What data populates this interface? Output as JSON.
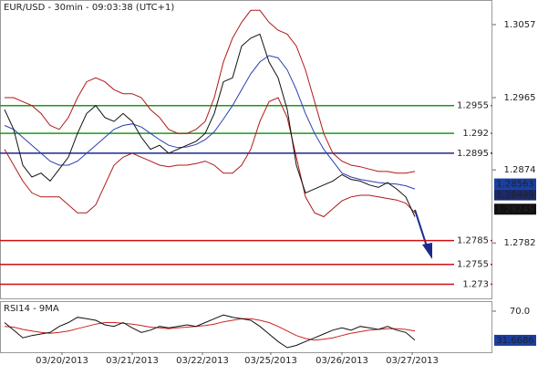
{
  "chart_data": [
    {
      "type": "line",
      "title": "EUR/USD - 30min - 09:03:38 (UTC+1)",
      "x": [
        0,
        1,
        2,
        3,
        4,
        5,
        6,
        7,
        8,
        9,
        10,
        11,
        12,
        13,
        14,
        15,
        16,
        17,
        18,
        19,
        20,
        21,
        22,
        23,
        24,
        25,
        26,
        27,
        28,
        29,
        30,
        31,
        32,
        33,
        34,
        35,
        36,
        37,
        38,
        39,
        40,
        41,
        42,
        43,
        44,
        45
      ],
      "xlim": [
        -0.5,
        53.5
      ],
      "xticks": [
        {
          "value": 6.3,
          "label": "03/20/2013"
        },
        {
          "value": 14,
          "label": "03/21/2013"
        },
        {
          "value": 21.7,
          "label": "03/22/2013"
        },
        {
          "value": 29.2,
          "label": "03/25/2013"
        },
        {
          "value": 37,
          "label": "03/26/2013"
        },
        {
          "value": 44.7,
          "label": "03/27/2013"
        }
      ],
      "ylim": [
        1.2711,
        1.3088
      ],
      "yticks": [
        1.3057,
        1.2965,
        1.2874,
        1.2782
      ],
      "series": [
        {
          "color": "#b01818",
          "values": [
            1.2965,
            1.2965,
            1.296,
            1.2955,
            1.2945,
            1.293,
            1.2925,
            1.294,
            1.2965,
            1.2985,
            1.299,
            1.2985,
            1.2975,
            1.297,
            1.297,
            1.2965,
            1.295,
            1.294,
            1.2925,
            1.292,
            1.292,
            1.2925,
            1.2935,
            1.2965,
            1.301,
            1.304,
            1.306,
            1.3075,
            1.3075,
            1.306,
            1.305,
            1.3045,
            1.303,
            1.3,
            1.296,
            1.292,
            1.2895,
            1.2885,
            1.288,
            1.2878,
            1.2875,
            1.2872,
            1.2872,
            1.287,
            1.287,
            1.2872
          ]
        },
        {
          "color": "#b01818",
          "values": [
            1.29,
            1.288,
            1.286,
            1.2845,
            1.284,
            1.284,
            1.284,
            1.283,
            1.282,
            1.282,
            1.283,
            1.2855,
            1.288,
            1.289,
            1.2895,
            1.289,
            1.2885,
            1.288,
            1.2878,
            1.288,
            1.288,
            1.2882,
            1.2885,
            1.288,
            1.287,
            1.287,
            1.288,
            1.29,
            1.2935,
            1.296,
            1.2965,
            1.294,
            1.289,
            1.284,
            1.282,
            1.2815,
            1.2825,
            1.2835,
            1.284,
            1.2842,
            1.2842,
            1.284,
            1.2838,
            1.2836,
            1.2832,
            1.282
          ]
        },
        {
          "color": "#2b3fb0",
          "values": [
            1.293,
            1.2925,
            1.2915,
            1.2905,
            1.2895,
            1.2885,
            1.288,
            1.288,
            1.2885,
            1.2895,
            1.2905,
            1.2915,
            1.2925,
            1.293,
            1.2932,
            1.2928,
            1.292,
            1.2912,
            1.2905,
            1.2902,
            1.2903,
            1.2906,
            1.2912,
            1.2922,
            1.2938,
            1.2955,
            1.2975,
            1.2995,
            1.301,
            1.3018,
            1.3015,
            1.3,
            1.2975,
            1.2945,
            1.292,
            1.29,
            1.2885,
            1.287,
            1.2865,
            1.2862,
            1.286,
            1.2858,
            1.2857,
            1.2856,
            1.2854,
            1.285
          ]
        },
        {
          "color": "#111111",
          "values": [
            1.295,
            1.2925,
            1.288,
            1.2865,
            1.287,
            1.286,
            1.2875,
            1.289,
            1.292,
            1.2945,
            1.2955,
            1.294,
            1.2935,
            1.2945,
            1.2935,
            1.2915,
            1.29,
            1.2905,
            1.2895,
            1.29,
            1.2905,
            1.291,
            1.292,
            1.2945,
            1.2985,
            1.299,
            1.303,
            1.304,
            1.3045,
            1.301,
            1.299,
            1.295,
            1.288,
            1.2845,
            1.285,
            1.2855,
            1.286,
            1.2868,
            1.2862,
            1.286,
            1.2855,
            1.2852,
            1.2858,
            1.285,
            1.284,
            1.2815
          ]
        }
      ],
      "levels": [
        {
          "value": 1.2955,
          "label": "1.2955",
          "color": "#1a9a1a"
        },
        {
          "value": 1.292,
          "label": "1.292",
          "color": "#1a9a1a"
        },
        {
          "value": 1.2895,
          "label": "1.2895",
          "color": "#1a2a8a"
        },
        {
          "value": 1.2785,
          "label": "1.2785",
          "color": "#cc1111"
        },
        {
          "value": 1.2755,
          "label": "1.2755",
          "color": "#cc1111"
        },
        {
          "value": 1.273,
          "label": "1.273",
          "color": "#cc1111"
        }
      ],
      "price_labels": [
        {
          "value": 1.28563,
          "label": "1.28563",
          "color": "#1a3fa0"
        },
        {
          "value": 1.28499,
          "label": "1.28499",
          "color": "#1a2a6a"
        },
        {
          "value": 1.28245,
          "label": "1.28245",
          "color": "#111111"
        }
      ]
    },
    {
      "type": "line",
      "title": "RSI14 - 9MA",
      "x": [
        0,
        1,
        2,
        3,
        4,
        5,
        6,
        7,
        8,
        9,
        10,
        11,
        12,
        13,
        14,
        15,
        16,
        17,
        18,
        19,
        20,
        21,
        22,
        23,
        24,
        25,
        26,
        27,
        28,
        29,
        30,
        31,
        32,
        33,
        34,
        35,
        36,
        37,
        38,
        39,
        40,
        41,
        42,
        43,
        44,
        45
      ],
      "xlim": [
        -0.5,
        53.5
      ],
      "ylim": [
        16,
        82
      ],
      "yticks": [
        {
          "value": 70,
          "label": "70.0"
        }
      ],
      "series": [
        {
          "color": "#cc2222",
          "values": [
            50,
            49,
            46,
            44,
            42,
            41,
            42,
            44,
            47,
            50,
            53,
            55,
            55,
            54,
            53,
            51,
            49,
            48,
            47,
            48,
            49,
            50,
            51,
            53,
            56,
            58,
            60,
            60,
            58,
            55,
            50,
            44,
            38,
            34,
            32,
            33,
            35,
            38,
            41,
            43,
            45,
            46,
            47,
            47,
            46,
            44
          ]
        },
        {
          "color": "#111111",
          "values": [
            55,
            45,
            35,
            38,
            40,
            42,
            50,
            55,
            62,
            60,
            58,
            52,
            50,
            55,
            48,
            42,
            45,
            50,
            48,
            50,
            52,
            50,
            55,
            60,
            65,
            62,
            60,
            58,
            50,
            40,
            30,
            22,
            25,
            30,
            35,
            40,
            45,
            48,
            45,
            50,
            48,
            46,
            50,
            45,
            42,
            32
          ]
        }
      ],
      "price_labels": [
        {
          "value": 31.6686,
          "label": "31.6686",
          "color": "#1a3fa0"
        }
      ]
    }
  ]
}
